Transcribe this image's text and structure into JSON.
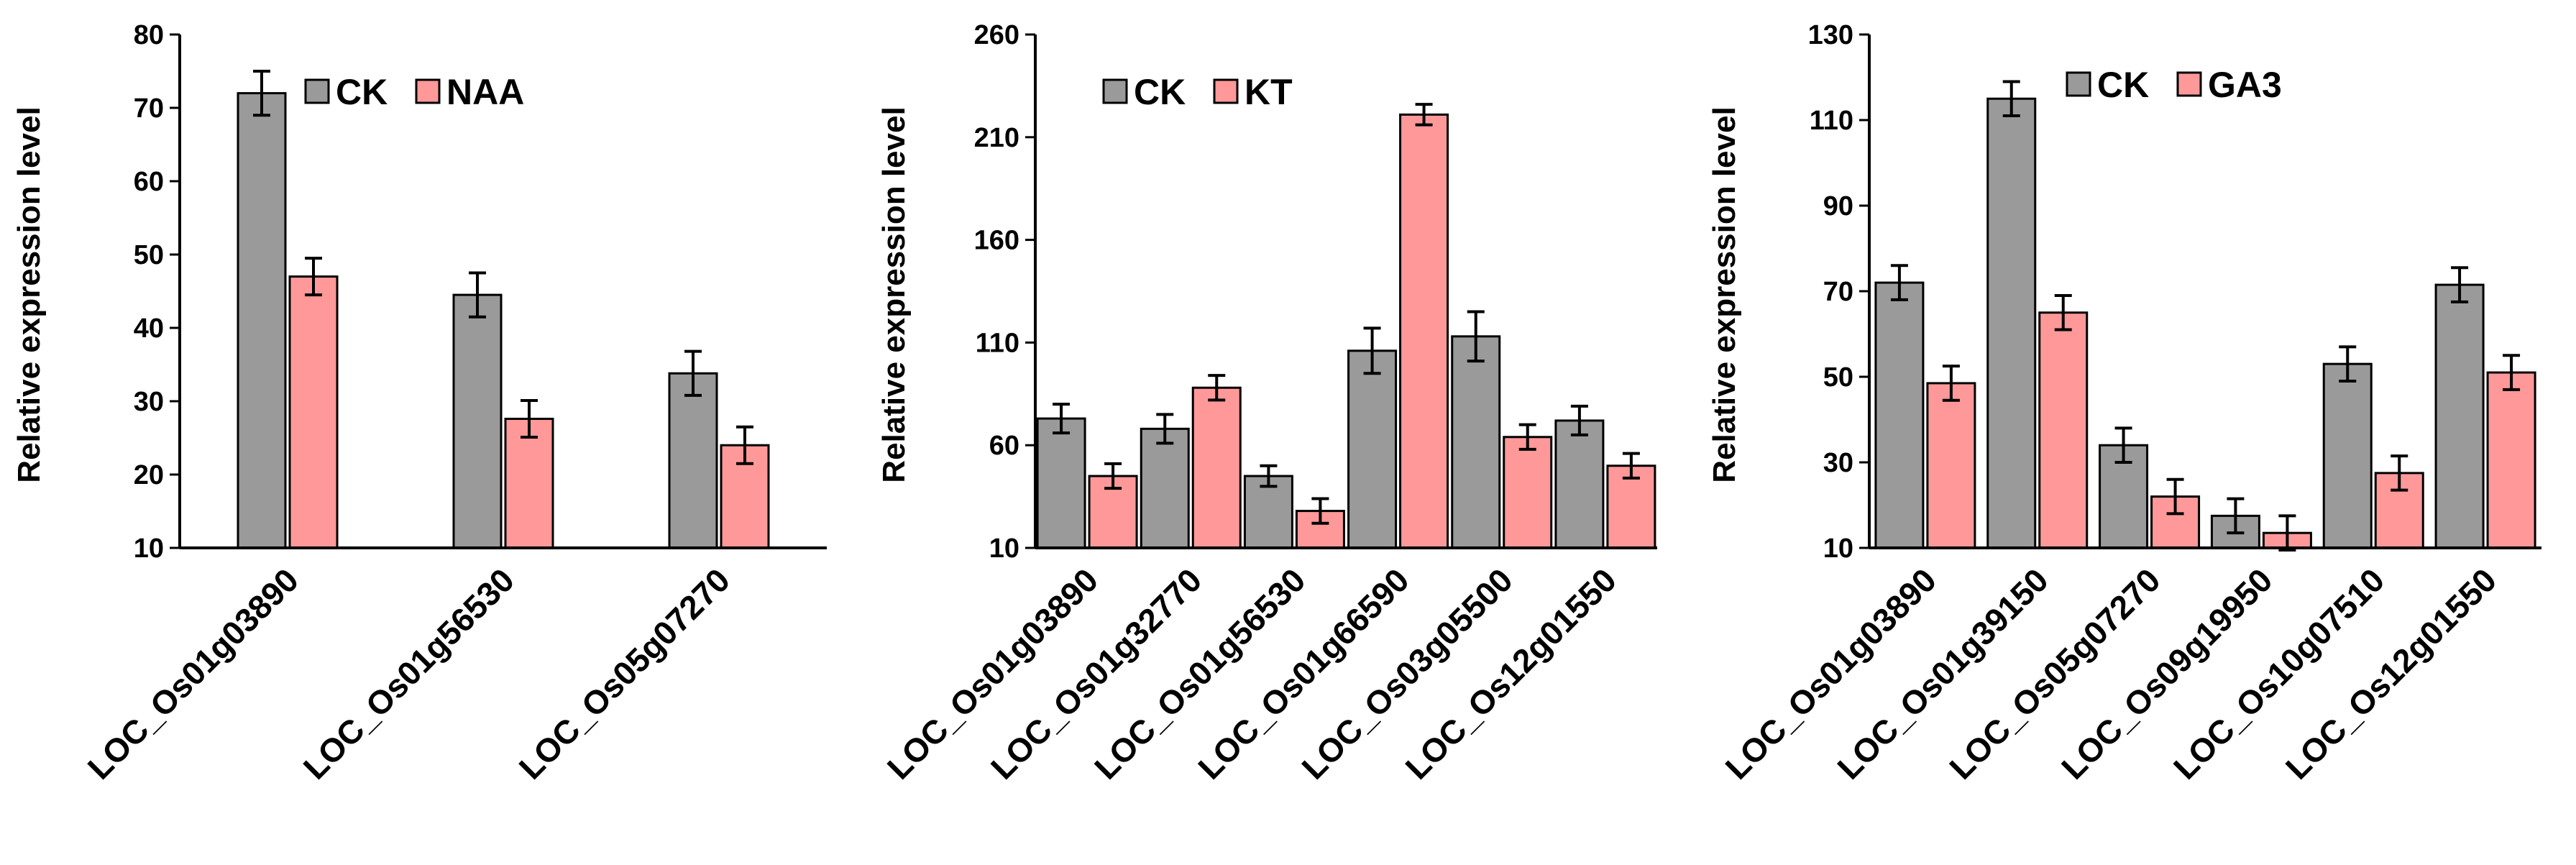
{
  "chart_data": [
    {
      "type": "bar",
      "title": "",
      "xlabel": "",
      "ylabel": "Relative expression level",
      "ylim": [
        10,
        80
      ],
      "yticks": [
        10,
        20,
        30,
        40,
        50,
        60,
        70,
        80
      ],
      "grid": false,
      "legend_position": "top",
      "categories": [
        "LOC_Os01g03890",
        "LOC_Os01g56530",
        "LOC_Os05g07270"
      ],
      "series": [
        {
          "name": "CK",
          "color": "#9a9a9a",
          "values": [
            72,
            44.5,
            33.8
          ],
          "errors": [
            3,
            3,
            3
          ]
        },
        {
          "name": "NAA",
          "color": "#ff9999",
          "values": [
            47,
            27.6,
            24
          ],
          "errors": [
            2.5,
            2.5,
            2.5
          ]
        }
      ]
    },
    {
      "type": "bar",
      "title": "",
      "xlabel": "",
      "ylabel": "Relative expression level",
      "ylim": [
        10,
        260
      ],
      "yticks": [
        10,
        60,
        110,
        160,
        210,
        260
      ],
      "grid": false,
      "legend_position": "top",
      "categories": [
        "LOC_Os01g03890",
        "LOC_Os01g32770",
        "LOC_Os01g56530",
        "LOC_Os01g66590",
        "LOC_Os03g05500",
        "LOC_Os12g01550"
      ],
      "series": [
        {
          "name": "CK",
          "color": "#9a9a9a",
          "values": [
            73,
            68,
            45,
            106,
            113,
            72
          ],
          "errors": [
            7,
            7,
            5,
            11,
            12,
            7
          ]
        },
        {
          "name": "KT",
          "color": "#ff9999",
          "values": [
            45,
            88,
            28,
            221,
            64,
            50
          ],
          "errors": [
            6,
            6,
            6,
            5,
            6,
            6
          ]
        }
      ]
    },
    {
      "type": "bar",
      "title": "",
      "xlabel": "",
      "ylabel": "Relative expression level",
      "ylim": [
        10,
        130
      ],
      "yticks": [
        10,
        30,
        50,
        70,
        90,
        110,
        130
      ],
      "grid": false,
      "legend_position": "top",
      "categories": [
        "LOC_Os01g03890",
        "LOC_Os01g39150",
        "LOC_Os05g07270",
        "LOC_Os09g19950",
        "LOC_Os10g07510",
        "LOC_Os12g01550"
      ],
      "series": [
        {
          "name": "CK",
          "color": "#9a9a9a",
          "values": [
            72,
            115,
            34,
            17.5,
            53,
            71.5
          ],
          "errors": [
            4,
            4,
            4,
            4,
            4,
            4
          ]
        },
        {
          "name": "GA3",
          "color": "#ff9999",
          "values": [
            48.5,
            65,
            22,
            13.5,
            27.5,
            51
          ],
          "errors": [
            4,
            4,
            4,
            4,
            4,
            4
          ]
        }
      ]
    }
  ]
}
